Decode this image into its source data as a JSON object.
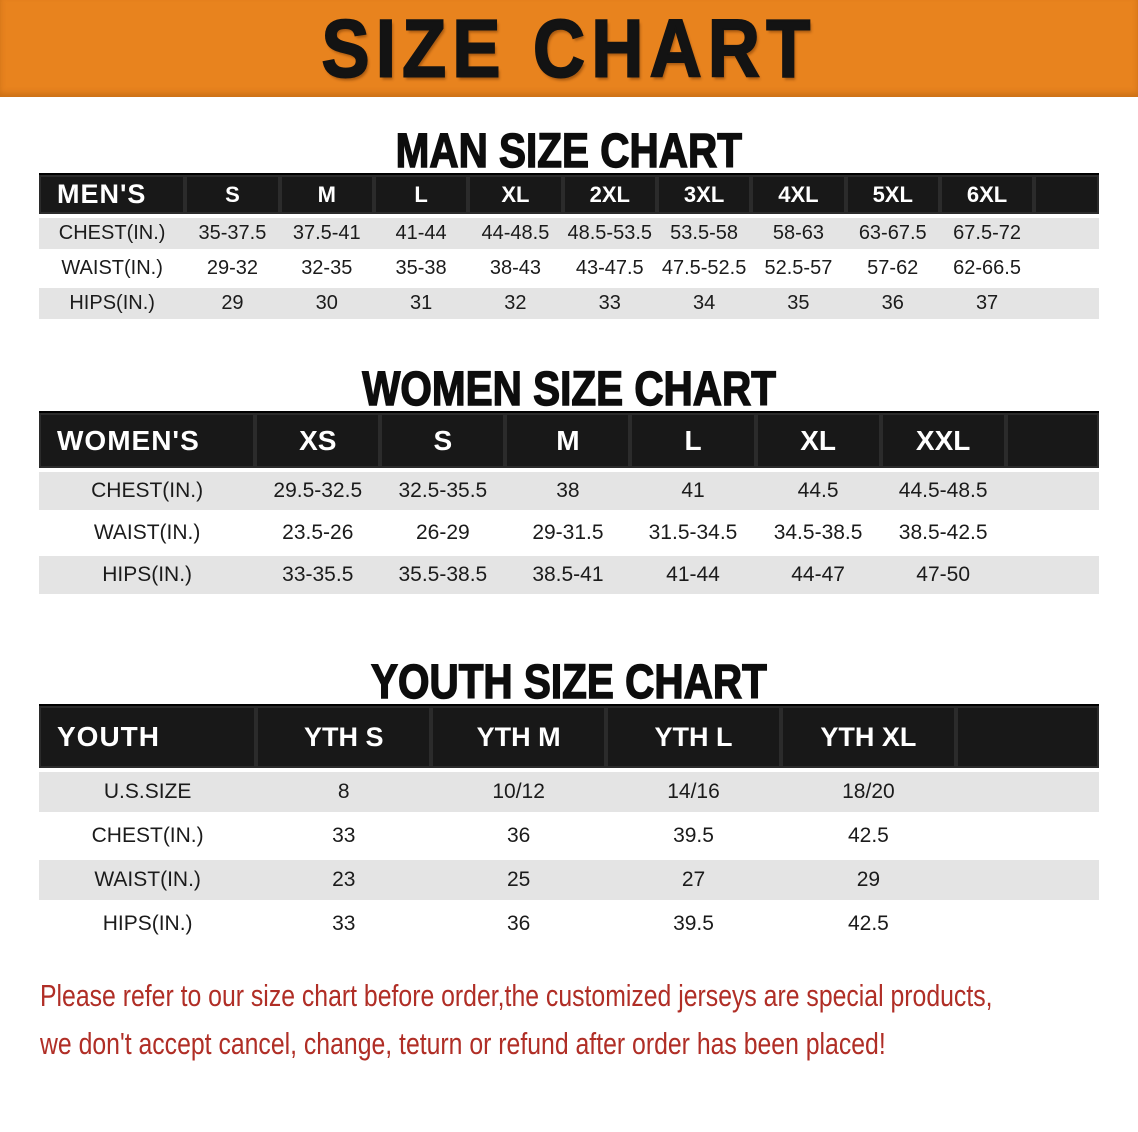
{
  "banner": {
    "title": "SIZE CHART"
  },
  "sections": {
    "men": {
      "heading": "MAN SIZE CHART",
      "table": {
        "header": [
          "MEN'S",
          "S",
          "M",
          "L",
          "XL",
          "2XL",
          "3XL",
          "4XL",
          "5XL",
          "6XL"
        ],
        "rows": [
          [
            "CHEST(IN.)",
            "35-37.5",
            "37.5-41",
            "41-44",
            "44-48.5",
            "48.5-53.5",
            "53.5-58",
            "58-63",
            "63-67.5",
            "67.5-72"
          ],
          [
            "WAIST(IN.)",
            "29-32",
            "32-35",
            "35-38",
            "38-43",
            "43-47.5",
            "47.5-52.5",
            "52.5-57",
            "57-62",
            "62-66.5"
          ],
          [
            "HIPS(IN.)",
            "29",
            "30",
            "31",
            "32",
            "33",
            "34",
            "35",
            "36",
            "37"
          ]
        ]
      }
    },
    "women": {
      "heading": "WOMEN SIZE CHART",
      "table": {
        "header": [
          "WOMEN'S",
          "XS",
          "S",
          "M",
          "L",
          "XL",
          "XXL"
        ],
        "rows": [
          [
            "CHEST(IN.)",
            "29.5-32.5",
            "32.5-35.5",
            "38",
            "41",
            "44.5",
            "44.5-48.5"
          ],
          [
            "WAIST(IN.)",
            "23.5-26",
            "26-29",
            "29-31.5",
            "31.5-34.5",
            "34.5-38.5",
            "38.5-42.5"
          ],
          [
            "HIPS(IN.)",
            "33-35.5",
            "35.5-38.5",
            "38.5-41",
            "41-44",
            "44-47",
            "47-50"
          ]
        ]
      }
    },
    "youth": {
      "heading": "YOUTH SIZE CHART",
      "table": {
        "header": [
          "YOUTH",
          "YTH S",
          "YTH M",
          "YTH L",
          "YTH XL"
        ],
        "rows": [
          [
            "U.S.SIZE",
            "8",
            "10/12",
            "14/16",
            "18/20"
          ],
          [
            "CHEST(IN.)",
            "33",
            "36",
            "39.5",
            "42.5"
          ],
          [
            "WAIST(IN.)",
            "23",
            "25",
            "27",
            "29"
          ],
          [
            "HIPS(IN.)",
            "33",
            "36",
            "39.5",
            "42.5"
          ]
        ]
      }
    }
  },
  "footer": {
    "lines": [
      "Please refer to our size chart before order,the customized jerseys are special products,",
      "we don't accept cancel, change, teturn or refund after order has been placed!"
    ]
  },
  "colors": {
    "banner_orange": "#E8831E",
    "header_bar_black": "#181818",
    "row_stripe_gray": "#E4E4E4",
    "note_red": "#B02E26"
  }
}
